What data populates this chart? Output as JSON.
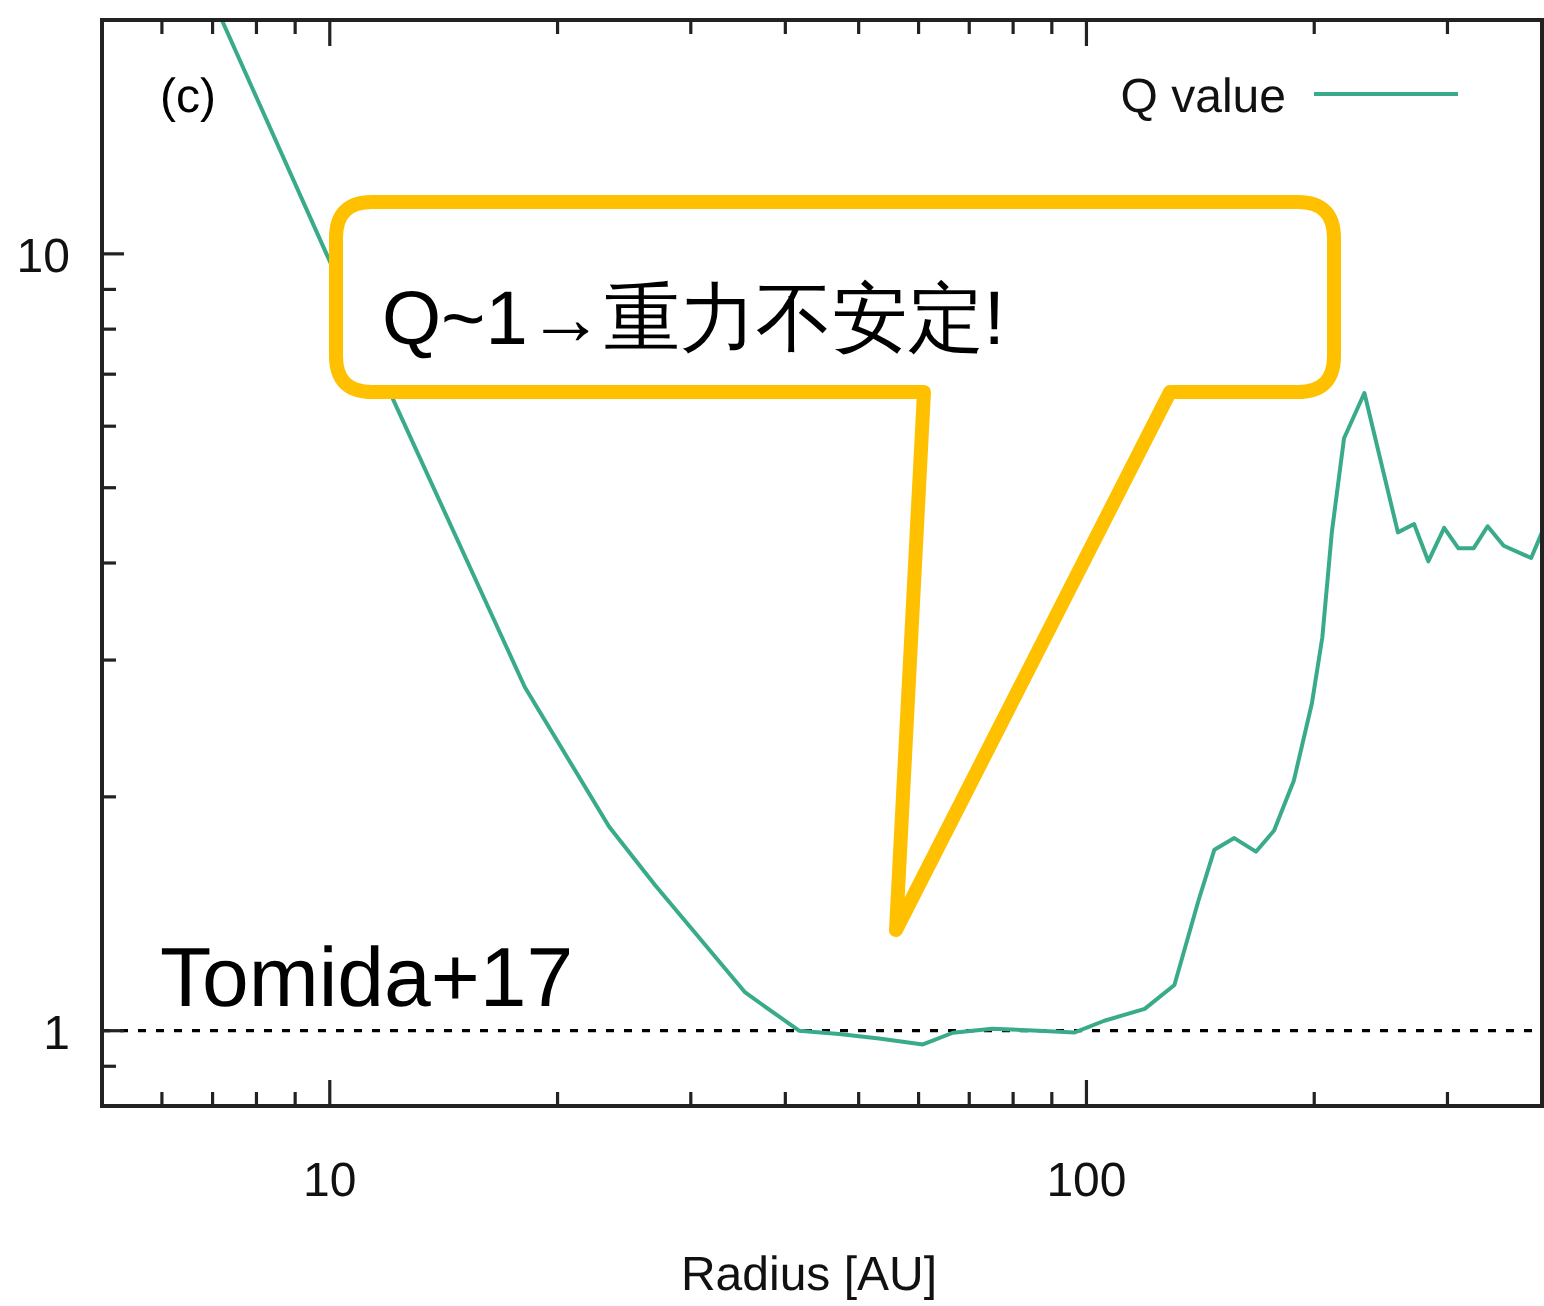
{
  "chart_data": {
    "type": "line",
    "xlabel": "Radius [AU]",
    "log": "xy",
    "legend": "top right",
    "grid": false,
    "xlim": [
      5,
      400
    ],
    "ylim": [
      0.8,
      20
    ],
    "xticks": [
      {
        "value": 6,
        "label": null
      },
      {
        "value": 7,
        "label": null
      },
      {
        "value": 8,
        "label": null
      },
      {
        "value": 9,
        "label": null
      },
      10,
      {
        "value": 20,
        "label": null
      },
      {
        "value": 30,
        "label": null
      },
      {
        "value": 40,
        "label": null
      },
      {
        "value": 50,
        "label": null
      },
      {
        "value": 60,
        "label": null
      },
      {
        "value": 70,
        "label": null
      },
      {
        "value": 80,
        "label": null
      },
      {
        "value": 90,
        "label": null
      },
      100,
      {
        "value": 200,
        "label": null
      },
      {
        "value": 300,
        "label": null
      }
    ],
    "yticks": [
      {
        "value": 0.9,
        "label": null
      },
      1,
      {
        "value": 2,
        "label": null
      },
      {
        "value": 3,
        "label": null
      },
      {
        "value": 4,
        "label": null
      },
      {
        "value": 5,
        "label": null
      },
      {
        "value": 6,
        "label": null
      },
      {
        "value": 7,
        "label": null
      },
      {
        "value": 8,
        "label": null
      },
      {
        "value": 9,
        "label": null
      },
      10
    ],
    "series": [
      {
        "name": "Q value",
        "color": "#3aab8a",
        "line_style": "solid",
        "marker": "none",
        "x": [
          7.2,
          9.9,
          18.1,
          23.4,
          26.9,
          35.4,
          41.7,
          47.1,
          53.2,
          60.8,
          66.6,
          75.1,
          86.5,
          96.5,
          105.6,
          119.4,
          130.7,
          140.6,
          147.6,
          156.8,
          167.5,
          177,
          188,
          198.6,
          205,
          211,
          219,
          233,
          258,
          271,
          283,
          297,
          310,
          325,
          339,
          356,
          387,
          400
        ],
        "values": [
          20,
          10,
          2.77,
          1.83,
          1.54,
          1.12,
          1.0,
          0.99,
          0.977,
          0.96,
          0.994,
          1.006,
          1.0,
          0.995,
          1.03,
          1.067,
          1.145,
          1.47,
          1.71,
          1.77,
          1.7,
          1.81,
          2.1,
          2.64,
          3.21,
          4.38,
          5.79,
          6.62,
          4.38,
          4.49,
          4.02,
          4.44,
          4.18,
          4.18,
          4.46,
          4.21,
          4.06,
          4.38
        ]
      }
    ],
    "ref_lines": [
      {
        "axis": "y",
        "value": 1,
        "color": "#000000",
        "line_style": "dashed"
      }
    ],
    "annotations": [
      "(c)",
      "Q~1→重力不安定!",
      "Tomida+17"
    ]
  }
}
